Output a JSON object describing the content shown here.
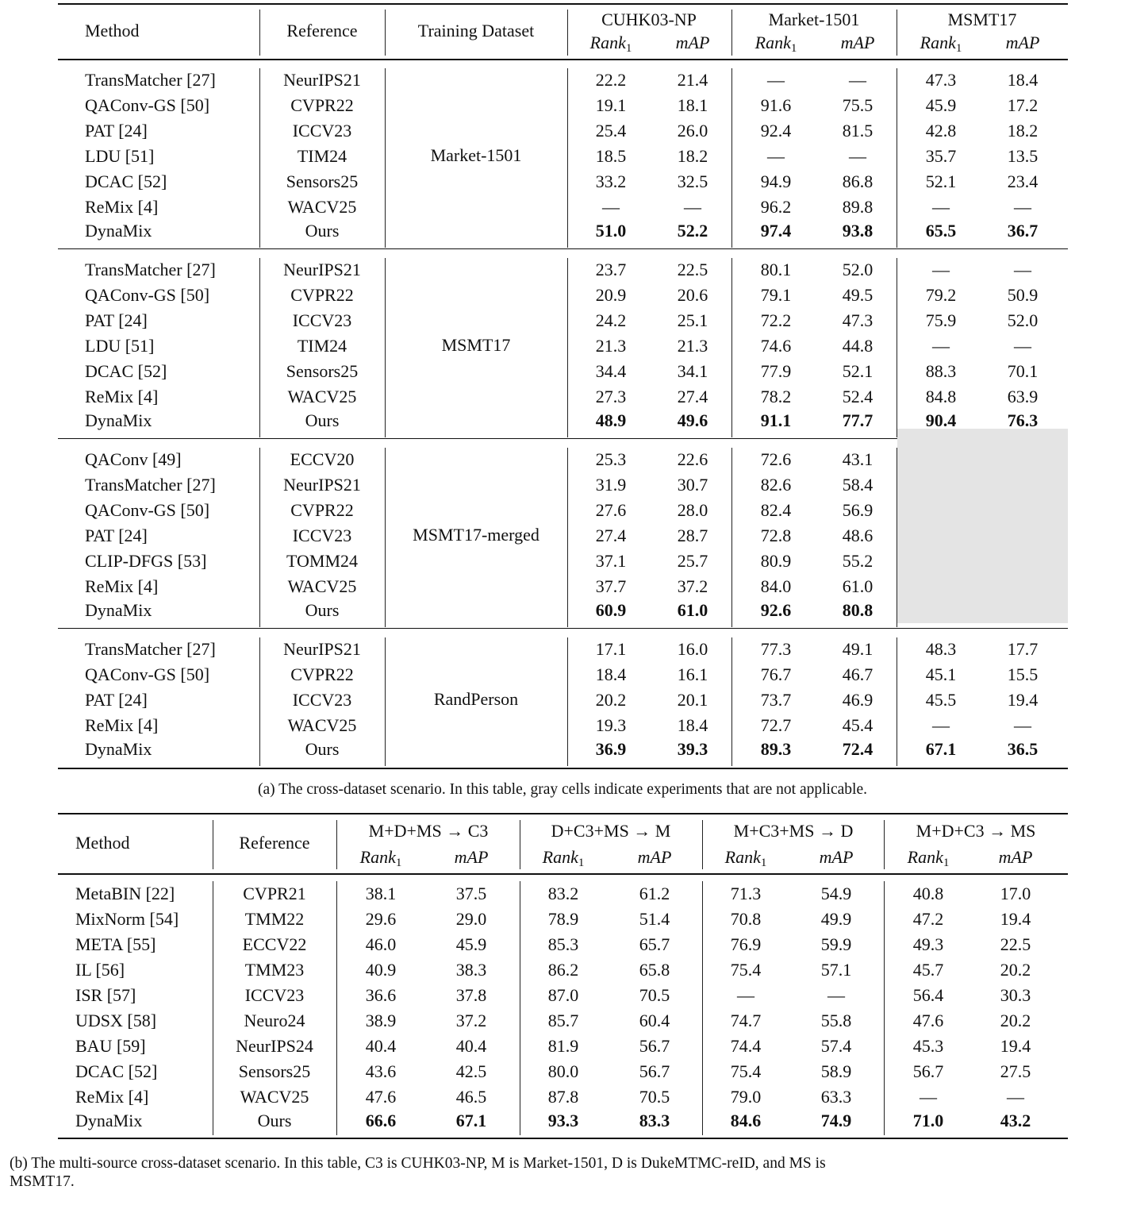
{
  "table_a": {
    "headers": {
      "method": "Method",
      "reference": "Reference",
      "training_dataset": "Training Dataset",
      "test_sets": [
        "CUHK03-NP",
        "Market-1501",
        "MSMT17"
      ],
      "metric_rank": "Rank",
      "metric_rank_sub": "1",
      "metric_map": "mAP"
    },
    "groups": [
      {
        "training_dataset": "Market-1501",
        "rows": [
          {
            "method": "TransMatcher [27]",
            "reference": "NeurIPS21",
            "values": [
              "22.2",
              "21.4",
              "—",
              "—",
              "47.3",
              "18.4"
            ]
          },
          {
            "method": "QAConv-GS [50]",
            "reference": "CVPR22",
            "values": [
              "19.1",
              "18.1",
              "91.6",
              "75.5",
              "45.9",
              "17.2"
            ]
          },
          {
            "method": "PAT [24]",
            "reference": "ICCV23",
            "values": [
              "25.4",
              "26.0",
              "92.4",
              "81.5",
              "42.8",
              "18.2"
            ]
          },
          {
            "method": "LDU [51]",
            "reference": "TIM24",
            "values": [
              "18.5",
              "18.2",
              "—",
              "—",
              "35.7",
              "13.5"
            ]
          },
          {
            "method": "DCAC [52]",
            "reference": "Sensors25",
            "values": [
              "33.2",
              "32.5",
              "94.9",
              "86.8",
              "52.1",
              "23.4"
            ]
          },
          {
            "method": "ReMix [4]",
            "reference": "WACV25",
            "values": [
              "—",
              "—",
              "96.2",
              "89.8",
              "—",
              "—"
            ]
          },
          {
            "method": "DynaMix",
            "reference": "Ours",
            "values": [
              "51.0",
              "52.2",
              "97.4",
              "93.8",
              "65.5",
              "36.7"
            ],
            "bold": true
          }
        ]
      },
      {
        "training_dataset": "MSMT17",
        "rows": [
          {
            "method": "TransMatcher [27]",
            "reference": "NeurIPS21",
            "values": [
              "23.7",
              "22.5",
              "80.1",
              "52.0",
              "—",
              "—"
            ]
          },
          {
            "method": "QAConv-GS [50]",
            "reference": "CVPR22",
            "values": [
              "20.9",
              "20.6",
              "79.1",
              "49.5",
              "79.2",
              "50.9"
            ]
          },
          {
            "method": "PAT [24]",
            "reference": "ICCV23",
            "values": [
              "24.2",
              "25.1",
              "72.2",
              "47.3",
              "75.9",
              "52.0"
            ]
          },
          {
            "method": "LDU [51]",
            "reference": "TIM24",
            "values": [
              "21.3",
              "21.3",
              "74.6",
              "44.8",
              "—",
              "—"
            ]
          },
          {
            "method": "DCAC [52]",
            "reference": "Sensors25",
            "values": [
              "34.4",
              "34.1",
              "77.9",
              "52.1",
              "88.3",
              "70.1"
            ]
          },
          {
            "method": "ReMix [4]",
            "reference": "WACV25",
            "values": [
              "27.3",
              "27.4",
              "78.2",
              "52.4",
              "84.8",
              "63.9"
            ]
          },
          {
            "method": "DynaMix",
            "reference": "Ours",
            "values": [
              "48.9",
              "49.6",
              "91.1",
              "77.7",
              "90.4",
              "76.3"
            ],
            "bold": true
          }
        ]
      },
      {
        "training_dataset": "MSMT17-merged",
        "gray_last_dataset": true,
        "rows": [
          {
            "method": "QAConv [49]",
            "reference": "ECCV20",
            "values": [
              "25.3",
              "22.6",
              "72.6",
              "43.1",
              "",
              ""
            ]
          },
          {
            "method": "TransMatcher [27]",
            "reference": "NeurIPS21",
            "values": [
              "31.9",
              "30.7",
              "82.6",
              "58.4",
              "",
              ""
            ]
          },
          {
            "method": "QAConv-GS [50]",
            "reference": "CVPR22",
            "values": [
              "27.6",
              "28.0",
              "82.4",
              "56.9",
              "",
              ""
            ]
          },
          {
            "method": "PAT [24]",
            "reference": "ICCV23",
            "values": [
              "27.4",
              "28.7",
              "72.8",
              "48.6",
              "",
              ""
            ]
          },
          {
            "method": "CLIP-DFGS [53]",
            "reference": "TOMM24",
            "values": [
              "37.1",
              "25.7",
              "80.9",
              "55.2",
              "",
              ""
            ]
          },
          {
            "method": "ReMix [4]",
            "reference": "WACV25",
            "values": [
              "37.7",
              "37.2",
              "84.0",
              "61.0",
              "",
              ""
            ]
          },
          {
            "method": "DynaMix",
            "reference": "Ours",
            "values": [
              "60.9",
              "61.0",
              "92.6",
              "80.8",
              "",
              ""
            ],
            "bold": true
          }
        ]
      },
      {
        "training_dataset": "RandPerson",
        "rows": [
          {
            "method": "TransMatcher [27]",
            "reference": "NeurIPS21",
            "values": [
              "17.1",
              "16.0",
              "77.3",
              "49.1",
              "48.3",
              "17.7"
            ]
          },
          {
            "method": "QAConv-GS [50]",
            "reference": "CVPR22",
            "values": [
              "18.4",
              "16.1",
              "76.7",
              "46.7",
              "45.1",
              "15.5"
            ]
          },
          {
            "method": "PAT [24]",
            "reference": "ICCV23",
            "values": [
              "20.2",
              "20.1",
              "73.7",
              "46.9",
              "45.5",
              "19.4"
            ]
          },
          {
            "method": "ReMix [4]",
            "reference": "WACV25",
            "values": [
              "19.3",
              "18.4",
              "72.7",
              "45.4",
              "—",
              "—"
            ]
          },
          {
            "method": "DynaMix",
            "reference": "Ours",
            "values": [
              "36.9",
              "39.3",
              "89.3",
              "72.4",
              "67.1",
              "36.5"
            ],
            "bold": true
          }
        ]
      }
    ],
    "caption": "(a) The cross-dataset scenario. In this table, gray cells indicate experiments that are not applicable.",
    "gray_color": "#e4e4e4"
  },
  "table_b": {
    "headers": {
      "method": "Method",
      "reference": "Reference",
      "settings": [
        "M+D+MS → C3",
        "D+C3+MS → M",
        "M+C3+MS → D",
        "M+D+C3 → MS"
      ],
      "metric_rank": "Rank",
      "metric_rank_sub": "1",
      "metric_map": "mAP"
    },
    "rows": [
      {
        "method": "MetaBIN [22]",
        "reference": "CVPR21",
        "values": [
          "38.1",
          "37.5",
          "83.2",
          "61.2",
          "71.3",
          "54.9",
          "40.8",
          "17.0"
        ]
      },
      {
        "method": "MixNorm [54]",
        "reference": "TMM22",
        "values": [
          "29.6",
          "29.0",
          "78.9",
          "51.4",
          "70.8",
          "49.9",
          "47.2",
          "19.4"
        ]
      },
      {
        "method": "META [55]",
        "reference": "ECCV22",
        "values": [
          "46.0",
          "45.9",
          "85.3",
          "65.7",
          "76.9",
          "59.9",
          "49.3",
          "22.5"
        ]
      },
      {
        "method": "IL [56]",
        "reference": "TMM23",
        "values": [
          "40.9",
          "38.3",
          "86.2",
          "65.8",
          "75.4",
          "57.1",
          "45.7",
          "20.2"
        ]
      },
      {
        "method": "ISR [57]",
        "reference": "ICCV23",
        "values": [
          "36.6",
          "37.8",
          "87.0",
          "70.5",
          "—",
          "—",
          "56.4",
          "30.3"
        ]
      },
      {
        "method": "UDSX [58]",
        "reference": "Neuro24",
        "values": [
          "38.9",
          "37.2",
          "85.7",
          "60.4",
          "74.7",
          "55.8",
          "47.6",
          "20.2"
        ]
      },
      {
        "method": "BAU [59]",
        "reference": "NeurIPS24",
        "values": [
          "40.4",
          "40.4",
          "81.9",
          "56.7",
          "74.4",
          "57.4",
          "45.3",
          "19.4"
        ]
      },
      {
        "method": "DCAC [52]",
        "reference": "Sensors25",
        "values": [
          "43.6",
          "42.5",
          "80.0",
          "56.7",
          "75.4",
          "58.9",
          "56.7",
          "27.5"
        ]
      },
      {
        "method": "ReMix [4]",
        "reference": "WACV25",
        "values": [
          "47.6",
          "46.5",
          "87.8",
          "70.5",
          "79.0",
          "63.3",
          "—",
          "—"
        ]
      },
      {
        "method": "DynaMix",
        "reference": "Ours",
        "values": [
          "66.6",
          "67.1",
          "93.3",
          "83.3",
          "84.6",
          "74.9",
          "71.0",
          "43.2"
        ],
        "bold": true
      }
    ],
    "caption_line1": "(b) The multi-source cross-dataset scenario. In this table, C3 is CUHK03-NP, M is Market-1501, D is DukeMTMC-reID, and MS is",
    "caption_line2": "MSMT17."
  }
}
